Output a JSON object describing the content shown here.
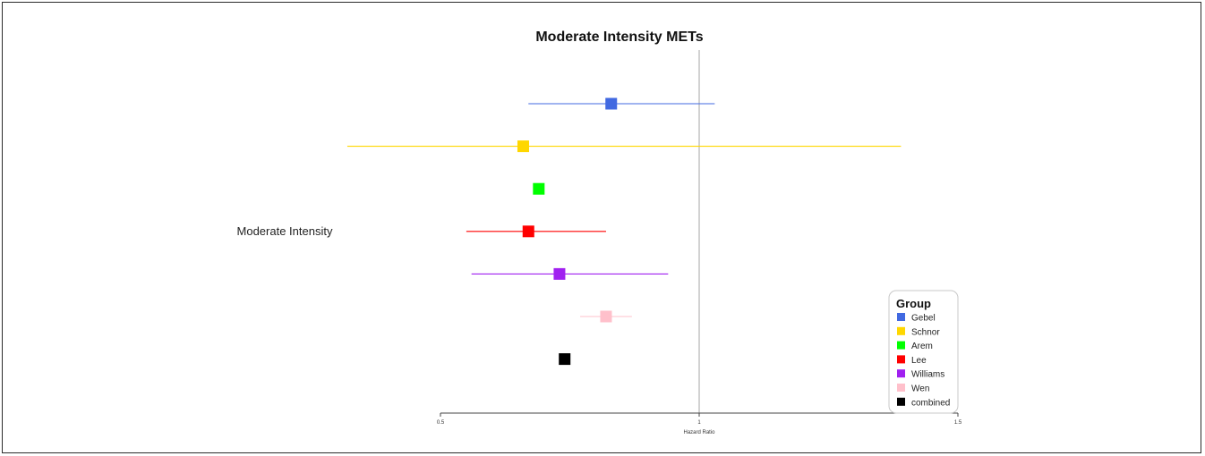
{
  "chart_data": {
    "type": "forest",
    "title": "Moderate Intensity METs",
    "xlabel": "Hazard Ratio",
    "ylabel": "",
    "row_label": "Moderate Intensity",
    "xlim": [
      0.5,
      1.5
    ],
    "x_ticks": [
      0.5,
      1,
      1.5
    ],
    "x_tick_labels": [
      "0.5",
      "1",
      "1.5"
    ],
    "reference_line": 1,
    "grid": false,
    "legend_title": "Group",
    "legend_position": "bottom-right",
    "series": [
      {
        "name": "Gebel",
        "color": "#4169E1",
        "hr": 0.83,
        "lower": 0.67,
        "upper": 1.03
      },
      {
        "name": "Schnor",
        "color": "#FFD700",
        "hr": 0.66,
        "lower": 0.32,
        "upper": 1.39
      },
      {
        "name": "Arem",
        "color": "#00FF00",
        "hr": 0.69,
        "lower": 0.69,
        "upper": 0.69
      },
      {
        "name": "Lee",
        "color": "#FF0000",
        "hr": 0.67,
        "lower": 0.55,
        "upper": 0.82
      },
      {
        "name": "Williams",
        "color": "#A020F0",
        "hr": 0.73,
        "lower": 0.56,
        "upper": 0.94
      },
      {
        "name": "Wen",
        "color": "#FFC0CB",
        "hr": 0.82,
        "lower": 0.77,
        "upper": 0.87
      },
      {
        "name": "combined",
        "color": "#000000",
        "hr": 0.74,
        "lower": 0.74,
        "upper": 0.74
      }
    ]
  }
}
